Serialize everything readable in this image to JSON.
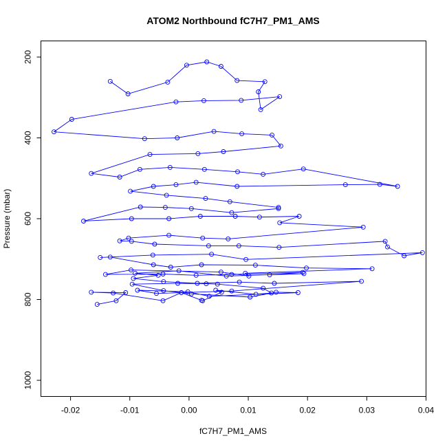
{
  "chart_data": {
    "type": "line",
    "title": "ATOM2 Northbound fC7H7_PM1_AMS",
    "xlabel": "fC7H7_PM1_AMS",
    "ylabel": "Pressure (mbar)",
    "xlim": [
      -0.025,
      0.04
    ],
    "ylim": [
      1040,
      160
    ],
    "y_axis_inverted": true,
    "grid": false,
    "legend": "none",
    "x_ticks": [
      -0.02,
      -0.01,
      0.0,
      0.01,
      0.02,
      0.03,
      0.04
    ],
    "x_tick_labels": [
      "-0.02",
      "-0.01",
      "0.00",
      "0.01",
      "0.02",
      "0.03",
      "0.04"
    ],
    "y_ticks": [
      200,
      400,
      600,
      800,
      1000
    ],
    "y_tick_labels": [
      "200",
      "400",
      "600",
      "800",
      "1000"
    ],
    "series": [
      {
        "color": "#0000ff",
        "marker": "open-circle",
        "points": [
          [
            -0.0155,
            812
          ],
          [
            -0.0123,
            803
          ],
          [
            -0.0107,
            783
          ],
          [
            -0.0165,
            782
          ],
          [
            -0.0128,
            784
          ],
          [
            -0.0044,
            803
          ],
          [
            -0.0013,
            783
          ],
          [
            0.0021,
            802
          ],
          [
            0.0023,
            803
          ],
          [
            0.0055,
            782
          ],
          [
            0.0045,
            777
          ],
          [
            0.0113,
            787
          ],
          [
            0.0139,
            784
          ],
          [
            0.0125,
            772
          ],
          [
            0.0048,
            762
          ],
          [
            0.0029,
            761
          ],
          [
            -0.0019,
            760
          ],
          [
            -0.0096,
            762
          ],
          [
            -0.0043,
            778
          ],
          [
            0.0004,
            786
          ],
          [
            0.0103,
            794
          ],
          [
            0.0147,
            782
          ],
          [
            0.0184,
            783
          ],
          [
            0.0034,
            792
          ],
          [
            -0.0002,
            781
          ],
          [
            -0.0087,
            777
          ],
          [
            -0.0055,
            785
          ],
          [
            0.0072,
            779
          ],
          [
            0.0291,
            755
          ],
          [
            0.0144,
            760
          ],
          [
            0.0085,
            757
          ],
          [
            0.0014,
            760
          ],
          [
            -0.0043,
            756
          ],
          [
            -0.0094,
            748
          ],
          [
            -0.0052,
            740
          ],
          [
            -0.0091,
            735
          ],
          [
            -0.0017,
            729
          ],
          [
            0.0063,
            742
          ],
          [
            0.0194,
            736
          ],
          [
            0.0136,
            739
          ],
          [
            0.0192,
            733
          ],
          [
            0.0072,
            738
          ],
          [
            0.0012,
            740
          ],
          [
            -0.0044,
            737
          ],
          [
            -0.0141,
            738
          ],
          [
            -0.0098,
            727
          ],
          [
            0.0054,
            732
          ],
          [
            0.0101,
            742
          ],
          [
            0.0095,
            735
          ],
          [
            0.0309,
            724
          ],
          [
            0.0198,
            722
          ],
          [
            0.0112,
            715
          ],
          [
            0.0021,
            714
          ],
          [
            -0.0031,
            720
          ],
          [
            -0.006,
            714
          ],
          [
            -0.0133,
            695
          ],
          [
            -0.015,
            696
          ],
          [
            -0.0061,
            690
          ],
          [
            0.0038,
            688
          ],
          [
            0.0096,
            701
          ],
          [
            0.0394,
            684
          ],
          [
            0.0363,
            692
          ],
          [
            0.0335,
            670
          ],
          [
            0.0331,
            656
          ],
          [
            0.0152,
            671
          ],
          [
            0.0084,
            667
          ],
          [
            0.0033,
            667
          ],
          [
            -0.0058,
            663
          ],
          [
            -0.0097,
            656
          ],
          [
            -0.0117,
            655
          ],
          [
            -0.0102,
            648
          ],
          [
            -0.0034,
            641
          ],
          [
            0.0023,
            648
          ],
          [
            0.0066,
            650
          ],
          [
            0.0294,
            621
          ],
          [
            0.0153,
            610
          ],
          [
            0.0186,
            594
          ],
          [
            0.0119,
            596
          ],
          [
            0.0078,
            594
          ],
          [
            0.0019,
            594
          ],
          [
            -0.0034,
            600
          ],
          [
            -0.0097,
            600
          ],
          [
            -0.0178,
            606
          ],
          [
            -0.0082,
            571
          ],
          [
            -0.004,
            572
          ],
          [
            0.0004,
            575
          ],
          [
            0.0072,
            585
          ],
          [
            0.0151,
            575
          ],
          [
            0.0151,
            572
          ],
          [
            0.0069,
            558
          ],
          [
            0.0028,
            550
          ],
          [
            -0.0038,
            542
          ],
          [
            -0.0099,
            532
          ],
          [
            -0.006,
            520
          ],
          [
            -0.0022,
            516
          ],
          [
            0.0012,
            510
          ],
          [
            0.0081,
            520
          ],
          [
            0.0264,
            516
          ],
          [
            0.0322,
            515
          ],
          [
            0.0352,
            520
          ],
          [
            0.0193,
            477
          ],
          [
            0.0125,
            490
          ],
          [
            0.0082,
            484
          ],
          [
            0.0026,
            478
          ],
          [
            -0.0032,
            473
          ],
          [
            -0.0083,
            478
          ],
          [
            -0.0117,
            497
          ],
          [
            -0.0165,
            488
          ],
          [
            -0.0066,
            441
          ],
          [
            0.0015,
            439
          ],
          [
            0.0058,
            434
          ],
          [
            0.0155,
            420
          ],
          [
            0.014,
            393
          ],
          [
            0.0089,
            390
          ],
          [
            0.0042,
            384
          ],
          [
            -0.002,
            400
          ],
          [
            -0.0075,
            402
          ],
          [
            -0.0228,
            385
          ],
          [
            -0.0198,
            354
          ],
          [
            -0.0022,
            311
          ],
          [
            0.0025,
            308
          ],
          [
            0.0088,
            307
          ],
          [
            0.0153,
            298
          ],
          [
            0.0121,
            330
          ],
          [
            0.0117,
            286
          ],
          [
            0.0128,
            261
          ],
          [
            0.0081,
            258
          ],
          [
            0.0054,
            223
          ],
          [
            0.003,
            212
          ],
          [
            -0.0004,
            220
          ],
          [
            -0.0036,
            262
          ],
          [
            -0.0103,
            291
          ],
          [
            -0.0133,
            260
          ]
        ]
      }
    ]
  }
}
